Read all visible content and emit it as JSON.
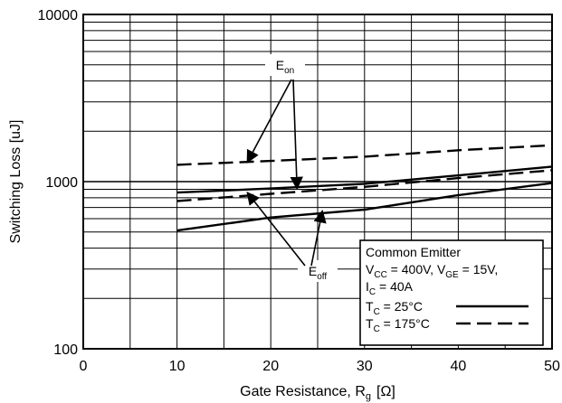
{
  "chart_data": {
    "type": "line",
    "xlabel": "Gate Resistance, R",
    "xlabel_sub": "g",
    "xlabel_unit": "[Ω]",
    "ylabel": "Switching Loss [uJ]",
    "xlim": [
      0,
      50
    ],
    "ylim": [
      100,
      10000
    ],
    "yscale": "log",
    "grid": true,
    "x_ticks": [
      "0",
      "10",
      "20",
      "30",
      "40",
      "50"
    ],
    "y_ticks": [
      "100",
      "1000",
      "10000"
    ],
    "series": [
      {
        "kind": "Eon",
        "style": "solid",
        "x": [
          10,
          20,
          30,
          40,
          50
        ],
        "values": [
          860,
          910,
          970,
          1090,
          1230
        ]
      },
      {
        "kind": "Eon",
        "style": "dashed",
        "x": [
          10,
          20,
          30,
          40,
          50
        ],
        "values": [
          1260,
          1330,
          1410,
          1540,
          1650
        ]
      },
      {
        "kind": "Eoff",
        "style": "solid",
        "x": [
          10,
          20,
          30,
          40,
          50
        ],
        "values": [
          510,
          610,
          680,
          830,
          980
        ]
      },
      {
        "kind": "Eoff",
        "style": "dashed",
        "x": [
          10,
          20,
          30,
          40,
          50
        ],
        "values": [
          765,
          845,
          930,
          1050,
          1170
        ]
      }
    ],
    "annotations": {
      "eon": {
        "main": "E",
        "sub": "on"
      },
      "eoff": {
        "main": "E",
        "sub": "off"
      }
    },
    "legend": {
      "placement": "bottom-right",
      "lines": [
        {
          "parts": [
            [
              "Common Emitter",
              ""
            ]
          ]
        },
        {
          "parts": [
            [
              "V",
              ""
            ],
            [
              "CC",
              "sub"
            ],
            [
              " = 400V, V",
              ""
            ],
            [
              "GE",
              "sub"
            ],
            [
              " = 15V,",
              ""
            ]
          ]
        },
        {
          "parts": [
            [
              "I",
              ""
            ],
            [
              "C",
              "sub"
            ],
            [
              " = 40A",
              ""
            ]
          ]
        }
      ],
      "entries": [
        {
          "parts": [
            [
              "T",
              ""
            ],
            [
              "C",
              "sub"
            ],
            [
              " = 25°C",
              ""
            ]
          ],
          "style": "solid"
        },
        {
          "parts": [
            [
              "T",
              ""
            ],
            [
              "C",
              "sub"
            ],
            [
              " = 175°C",
              ""
            ]
          ],
          "style": "dashed"
        }
      ]
    }
  }
}
